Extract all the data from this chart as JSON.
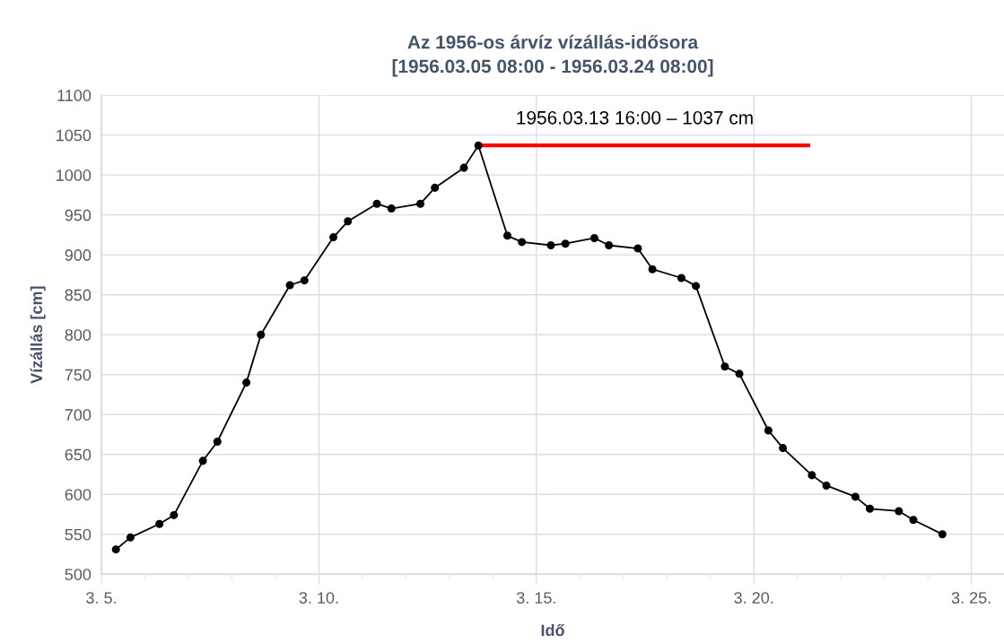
{
  "chart_data": {
    "type": "line",
    "title": "Az 1956-os árvíz vízállás-idősora\n[1956.03.05 08:00 - 1956.03.24 08:00]",
    "xlabel": "Idő",
    "ylabel": "Vízállás [cm]",
    "series": [
      {
        "color": "#000000",
        "x": [
          "1956-03-05T08:00",
          "1956-03-05T16:00",
          "1956-03-06T08:00",
          "1956-03-06T16:00",
          "1956-03-07T08:00",
          "1956-03-07T16:00",
          "1956-03-08T08:00",
          "1956-03-08T16:00",
          "1956-03-09T08:00",
          "1956-03-09T16:00",
          "1956-03-10T08:00",
          "1956-03-10T16:00",
          "1956-03-11T08:00",
          "1956-03-11T16:00",
          "1956-03-12T08:00",
          "1956-03-12T16:00",
          "1956-03-13T08:00",
          "1956-03-13T16:00",
          "1956-03-14T08:00",
          "1956-03-14T16:00",
          "1956-03-15T08:00",
          "1956-03-15T16:00",
          "1956-03-16T08:00",
          "1956-03-16T16:00",
          "1956-03-17T08:00",
          "1956-03-17T16:00",
          "1956-03-18T08:00",
          "1956-03-18T16:00",
          "1956-03-19T08:00",
          "1956-03-19T16:00",
          "1956-03-20T08:00",
          "1956-03-20T16:00",
          "1956-03-21T08:00",
          "1956-03-21T16:00",
          "1956-03-22T08:00",
          "1956-03-22T16:00",
          "1956-03-23T08:00",
          "1956-03-23T16:00",
          "1956-03-24T08:00"
        ],
        "values": [
          531,
          546,
          563,
          574,
          642,
          666,
          740,
          800,
          862,
          868,
          922,
          942,
          964,
          958,
          964,
          984,
          1009,
          1037,
          924,
          916,
          912,
          914,
          921,
          912,
          908,
          882,
          871,
          861,
          760,
          751,
          680,
          658,
          624,
          611,
          597,
          582,
          579,
          568,
          550
        ]
      },
      {
        "color": "#ff0000",
        "type": "line",
        "marker": "none",
        "x": [
          "1956-03-13T16:00",
          "1956-03-21T06:00"
        ],
        "values": [
          1037,
          1037
        ]
      }
    ],
    "annotations": [
      {
        "text": "1956.03.13 16:00 – 1037 cm",
        "x": "1956-03-13T16:00",
        "y": 1037
      }
    ],
    "xlim": [
      "1956-03-05",
      "1956-03-25T18:00"
    ],
    "xticks": [
      {
        "value": "1956-03-05",
        "label": "3. 5."
      },
      {
        "value": "1956-03-10",
        "label": "3. 10."
      },
      {
        "value": "1956-03-15",
        "label": "3. 15."
      },
      {
        "value": "1956-03-20",
        "label": "3. 20."
      },
      {
        "value": "1956-03-25",
        "label": "3. 25."
      }
    ],
    "ylim": [
      500,
      1100
    ],
    "yticks": [
      500,
      550,
      600,
      650,
      700,
      750,
      800,
      850,
      900,
      950,
      1000,
      1050,
      1100
    ],
    "grid": true,
    "marker": "circle",
    "line_style": "solid"
  }
}
